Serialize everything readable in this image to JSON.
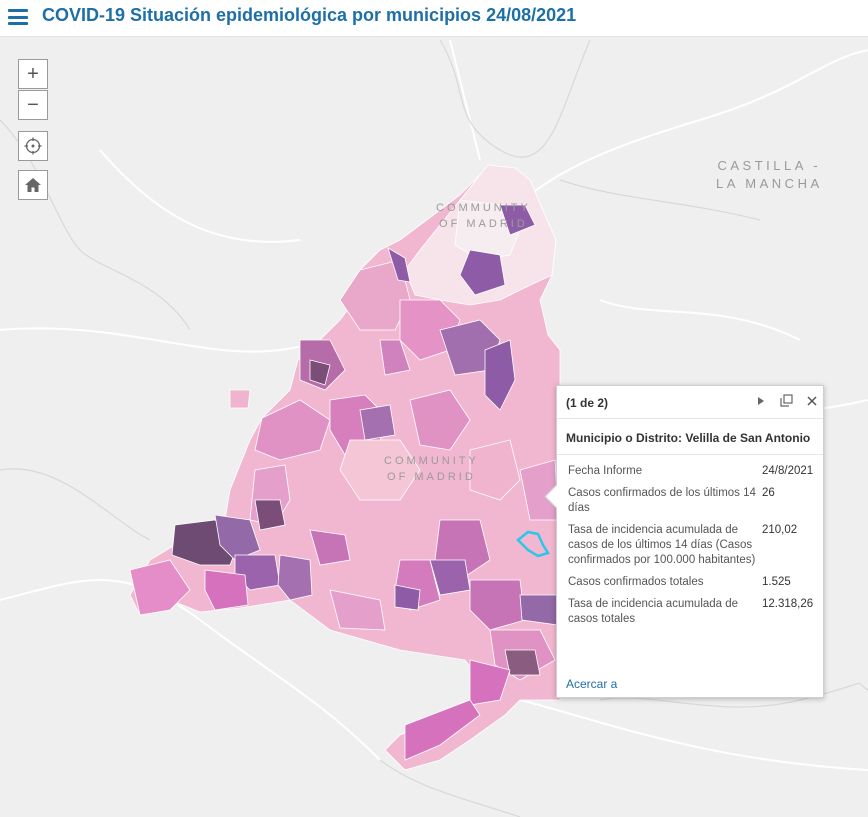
{
  "header": {
    "title": "COVID-19 Situación epidemiológica por municipios 24/08/2021"
  },
  "controls": {
    "zoom_in": "+",
    "zoom_out": "−",
    "locate_icon": "crosshair-icon",
    "home_icon": "home-icon"
  },
  "map": {
    "labels": {
      "castilla": "CASTILLA -\nLA MANCHA",
      "community_north": "COMMUNITY\nOF MADRID",
      "community_center": "COMMUNITY\nOF MADRID"
    }
  },
  "popup": {
    "counter": "(1 de 2)",
    "title": "Municipio o Distrito: Velilla de San Antonio",
    "fields": [
      {
        "label": "Fecha Informe",
        "value": "24/8/2021"
      },
      {
        "label": "Casos confirmados de los últimos 14 días",
        "value": "26"
      },
      {
        "label": "Tasa de incidencia acumulada de casos de los últimos 14 días (Casos confirmados por 100.000 habitantes)",
        "value": "210,02"
      },
      {
        "label": "Casos confirmados totales",
        "value": "1.525"
      },
      {
        "label": "Tasa de incidencia acumulada de casos totales",
        "value": "12.318,26"
      }
    ],
    "zoom_link": "Acercar a",
    "next_icon": "play-icon",
    "maximize_icon": "maximize-icon",
    "close_icon": "close-icon"
  },
  "colors": {
    "brand": "#1d6fa8",
    "map_background": "#efefef",
    "region_light": "#f4c6d6",
    "region_mid": "#e08ac6",
    "region_dark": "#8e5ca6",
    "region_darkest": "#6e4b72",
    "selected_outline": "#2bc7e8"
  }
}
